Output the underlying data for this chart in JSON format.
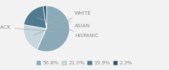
{
  "labels": [
    "BLACK",
    "WHITE",
    "HISPANIC",
    "ASIAN"
  ],
  "values": [
    56.8,
    21.0,
    19.9,
    2.3
  ],
  "colors": [
    "#8aaab8",
    "#c5d6de",
    "#4f7a8f",
    "#2b5468"
  ],
  "legend_labels": [
    "56.8%",
    "21.0%",
    "19.9%",
    "2.3%"
  ],
  "legend_colors": [
    "#8aaab8",
    "#c5d6de",
    "#4f7a8f",
    "#2b5468"
  ],
  "label_fontsize": 5.2,
  "legend_fontsize": 5.2,
  "bg_color": "#f2f2f2",
  "text_color": "#888888",
  "startangle": 90
}
